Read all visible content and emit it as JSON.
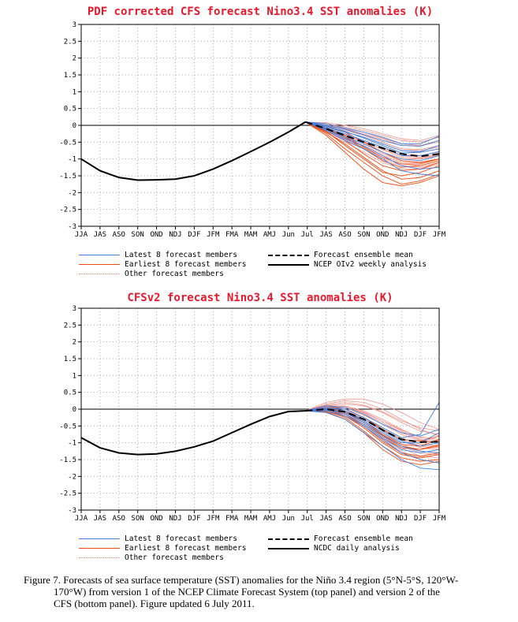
{
  "chart_data": [
    {
      "type": "line",
      "title": "PDF corrected CFS forecast Nino3.4 SST anomalies (K)",
      "ylim": [
        -3,
        3
      ],
      "yticks": [
        "3",
        "2.5",
        "2",
        "1.5",
        "1",
        "0.5",
        "0",
        "-0.5",
        "-1",
        "-1.5",
        "-2",
        "-2.5",
        "-3"
      ],
      "categories": [
        "JJA",
        "JAS",
        "ASO",
        "SON",
        "OND",
        "NDJ",
        "DJF",
        "JFM",
        "FMA",
        "MAM",
        "AMJ",
        "Jun",
        "Jul",
        "JAS",
        "ASO",
        "SON",
        "OND",
        "NDJ",
        "DJF",
        "JFM"
      ],
      "grid": true,
      "legend_position": "bottom",
      "series": [
        {
          "name": "NCEP OIv2 weekly analysis",
          "color": "#000000",
          "x": [
            0,
            1,
            2,
            3,
            4,
            5,
            6,
            7,
            8,
            9,
            10,
            11,
            11.9
          ],
          "values": [
            -1.0,
            -1.35,
            -1.55,
            -1.63,
            -1.62,
            -1.6,
            -1.5,
            -1.3,
            -1.05,
            -0.78,
            -0.5,
            -0.2,
            0.1
          ]
        },
        {
          "name": "Forecast ensemble mean",
          "color": "#000000",
          "dashed": true,
          "x": [
            11.9,
            13,
            14,
            15,
            16,
            17,
            18,
            19
          ],
          "values": [
            0.1,
            -0.1,
            -0.3,
            -0.5,
            -0.68,
            -0.85,
            -0.92,
            -0.85
          ]
        },
        {
          "name": "Latest 8 forecast members",
          "color": "#3f7fe0"
        },
        {
          "name": "Earliest 8 forecast members",
          "color": "#f04a10"
        },
        {
          "name": "Other forecast members",
          "color": "#f08a80"
        }
      ],
      "forecast_start_x": 11.9,
      "forecast_start_y": 0.1,
      "members": {
        "latest": [
          [
            0.1,
            0.0,
            -0.12,
            -0.28,
            -0.45,
            -0.6,
            -0.62,
            -0.45
          ],
          [
            0.1,
            0.05,
            -0.08,
            -0.2,
            -0.35,
            -0.55,
            -0.55,
            -0.32
          ],
          [
            0.1,
            -0.05,
            -0.2,
            -0.35,
            -0.55,
            -0.75,
            -0.78,
            -0.6
          ],
          [
            0.1,
            -0.02,
            -0.18,
            -0.38,
            -0.6,
            -0.82,
            -0.8,
            -0.7
          ],
          [
            0.1,
            -0.08,
            -0.25,
            -0.45,
            -0.65,
            -0.9,
            -0.9,
            -0.78
          ],
          [
            0.1,
            -0.1,
            -0.35,
            -0.55,
            -0.8,
            -1.0,
            -1.05,
            -0.9
          ],
          [
            0.1,
            -0.12,
            -0.4,
            -0.62,
            -0.9,
            -1.2,
            -1.3,
            -1.25
          ],
          [
            0.1,
            -0.15,
            -0.45,
            -0.7,
            -1.0,
            -1.35,
            -1.45,
            -1.5
          ]
        ],
        "earliest": [
          [
            0.1,
            -0.05,
            -0.2,
            -0.5,
            -0.8,
            -1.05,
            -1.1,
            -1.0
          ],
          [
            0.1,
            -0.12,
            -0.35,
            -0.7,
            -1.05,
            -1.25,
            -1.2,
            -1.05
          ],
          [
            0.1,
            -0.2,
            -0.55,
            -0.95,
            -1.35,
            -1.6,
            -1.55,
            -1.35
          ],
          [
            0.1,
            -0.25,
            -0.7,
            -1.1,
            -1.5,
            -1.75,
            -1.65,
            -1.45
          ],
          [
            0.1,
            -0.3,
            -0.8,
            -1.3,
            -1.7,
            -1.8,
            -1.7,
            -1.5
          ],
          [
            0.1,
            -0.18,
            -0.6,
            -1.0,
            -1.4,
            -1.5,
            -1.4,
            -1.2
          ],
          [
            0.1,
            -0.1,
            -0.3,
            -0.65,
            -0.95,
            -1.15,
            -1.15,
            -1.0
          ],
          [
            0.1,
            -0.15,
            -0.45,
            -0.85,
            -1.2,
            -1.35,
            -1.3,
            -1.1
          ]
        ],
        "other": [
          [
            0.1,
            0.05,
            -0.05,
            -0.15,
            -0.3,
            -0.45,
            -0.5,
            -0.35
          ],
          [
            0.1,
            0.0,
            -0.1,
            -0.25,
            -0.4,
            -0.6,
            -0.6,
            -0.5
          ],
          [
            0.1,
            0.08,
            0.0,
            -0.1,
            -0.25,
            -0.4,
            -0.45,
            -0.3
          ],
          [
            0.1,
            -0.05,
            -0.2,
            -0.35,
            -0.55,
            -0.75,
            -0.8,
            -0.7
          ],
          [
            0.1,
            -0.1,
            -0.3,
            -0.5,
            -0.7,
            -0.9,
            -0.95,
            -0.85
          ],
          [
            0.1,
            -0.08,
            -0.25,
            -0.45,
            -0.65,
            -0.85,
            -0.9,
            -0.8
          ],
          [
            0.1,
            -0.15,
            -0.38,
            -0.6,
            -0.85,
            -1.05,
            -1.1,
            -1.0
          ],
          [
            0.1,
            -0.2,
            -0.45,
            -0.7,
            -1.0,
            -1.2,
            -1.25,
            -1.1
          ],
          [
            0.1,
            -0.12,
            -0.32,
            -0.55,
            -0.8,
            -1.0,
            -1.0,
            -0.9
          ],
          [
            0.1,
            -0.05,
            -0.15,
            -0.3,
            -0.5,
            -0.7,
            -0.75,
            -0.65
          ],
          [
            0.1,
            -0.18,
            -0.42,
            -0.68,
            -0.95,
            -1.15,
            -1.2,
            -1.05
          ],
          [
            0.1,
            -0.02,
            -0.12,
            -0.28,
            -0.5,
            -0.7,
            -0.72,
            -0.6
          ],
          [
            0.1,
            -0.22,
            -0.5,
            -0.8,
            -1.1,
            -1.3,
            -1.3,
            -1.15
          ],
          [
            0.1,
            0.02,
            -0.1,
            -0.2,
            -0.38,
            -0.55,
            -0.6,
            -0.45
          ],
          [
            0.1,
            -0.1,
            -0.28,
            -0.48,
            -0.72,
            -0.95,
            -0.98,
            -0.88
          ],
          [
            0.1,
            -0.14,
            -0.36,
            -0.62,
            -0.9,
            -1.1,
            -1.12,
            -1.0
          ]
        ]
      },
      "legend": {
        "latest": "Latest 8 forecast members",
        "earliest": "Earliest 8 forecast members",
        "other": "Other forecast members",
        "mean": "Forecast ensemble mean",
        "analysis": "NCEP OIv2 weekly analysis"
      }
    },
    {
      "type": "line",
      "title": "CFSv2 forecast Nino3.4 SST anomalies (K)",
      "ylim": [
        -3,
        3
      ],
      "yticks": [
        "3",
        "2.5",
        "2",
        "1.5",
        "1",
        "0.5",
        "0",
        "-0.5",
        "-1",
        "-1.5",
        "-2",
        "-2.5",
        "-3"
      ],
      "categories": [
        "JJA",
        "JAS",
        "ASO",
        "SON",
        "OND",
        "NDJ",
        "DJF",
        "JFM",
        "FMA",
        "MAM",
        "AMJ",
        "Jun",
        "Jul",
        "JAS",
        "ASO",
        "SON",
        "OND",
        "NDJ",
        "DJF",
        "JFM"
      ],
      "grid": true,
      "legend_position": "bottom",
      "series": [
        {
          "name": "NCDC daily analysis",
          "color": "#000000",
          "x": [
            0,
            1,
            2,
            3,
            4,
            5,
            6,
            7,
            8,
            9,
            10,
            11,
            11.9
          ],
          "values": [
            -0.85,
            -1.15,
            -1.3,
            -1.35,
            -1.33,
            -1.25,
            -1.12,
            -0.95,
            -0.7,
            -0.45,
            -0.22,
            -0.07,
            -0.05
          ]
        },
        {
          "name": "Forecast ensemble mean",
          "color": "#000000",
          "dashed": true,
          "x": [
            11.9,
            13,
            14,
            15,
            16,
            17,
            18,
            19
          ],
          "values": [
            -0.05,
            0.0,
            -0.08,
            -0.3,
            -0.62,
            -0.9,
            -0.98,
            -0.97
          ]
        },
        {
          "name": "Latest 8 forecast members",
          "color": "#3f7fe0"
        },
        {
          "name": "Earliest 8 forecast members",
          "color": "#f04a10"
        },
        {
          "name": "Other forecast members",
          "color": "#f08a80"
        }
      ],
      "forecast_start_x": 11.9,
      "forecast_start_y": -0.05,
      "members": {
        "latest": [
          [
            -0.05,
            0.05,
            0.0,
            -0.25,
            -0.55,
            -0.85,
            -0.75,
            0.2
          ],
          [
            -0.05,
            0.0,
            -0.1,
            -0.35,
            -0.7,
            -1.0,
            -1.0,
            -0.7
          ],
          [
            -0.05,
            0.1,
            0.05,
            -0.15,
            -0.45,
            -0.7,
            -0.8,
            -0.6
          ],
          [
            -0.05,
            -0.05,
            -0.2,
            -0.5,
            -0.9,
            -1.3,
            -1.5,
            -1.6
          ],
          [
            -0.05,
            -0.02,
            -0.15,
            -0.45,
            -0.85,
            -1.2,
            -1.3,
            -1.2
          ],
          [
            -0.05,
            0.05,
            -0.05,
            -0.3,
            -0.65,
            -0.95,
            -1.1,
            -1.0
          ],
          [
            -0.05,
            -0.1,
            -0.3,
            -0.7,
            -1.1,
            -1.5,
            -1.75,
            -1.8
          ],
          [
            -0.05,
            0.02,
            -0.1,
            -0.4,
            -0.78,
            -1.1,
            -1.25,
            -1.3
          ]
        ],
        "earliest": [
          [
            -0.05,
            0.05,
            -0.05,
            -0.35,
            -0.75,
            -1.05,
            -1.1,
            -0.9
          ],
          [
            -0.05,
            0.0,
            -0.15,
            -0.5,
            -0.95,
            -1.3,
            -1.4,
            -1.3
          ],
          [
            -0.05,
            -0.05,
            -0.25,
            -0.65,
            -1.1,
            -1.45,
            -1.55,
            -1.5
          ],
          [
            -0.05,
            0.1,
            0.0,
            -0.25,
            -0.6,
            -0.9,
            -0.95,
            -0.8
          ],
          [
            -0.05,
            -0.08,
            -0.3,
            -0.7,
            -1.2,
            -1.55,
            -1.65,
            -1.55
          ],
          [
            -0.05,
            0.0,
            -0.2,
            -0.55,
            -1.0,
            -1.35,
            -1.45,
            -1.35
          ],
          [
            -0.05,
            -0.02,
            -0.15,
            -0.45,
            -0.85,
            -1.15,
            -1.2,
            -1.05
          ],
          [
            -0.05,
            0.05,
            -0.1,
            -0.4,
            -0.8,
            -1.1,
            -1.2,
            -1.1
          ]
        ],
        "other": [
          [
            -0.05,
            0.2,
            0.3,
            0.3,
            0.15,
            -0.1,
            -0.4,
            -0.6
          ],
          [
            -0.05,
            0.15,
            0.25,
            0.2,
            0.0,
            -0.3,
            -0.6,
            -0.8
          ],
          [
            -0.05,
            0.1,
            0.15,
            0.1,
            -0.1,
            -0.4,
            -0.65,
            -0.75
          ],
          [
            -0.05,
            0.05,
            0.05,
            -0.1,
            -0.35,
            -0.65,
            -0.9,
            -1.0
          ],
          [
            -0.05,
            0.0,
            -0.05,
            -0.25,
            -0.55,
            -0.85,
            -1.05,
            -1.1
          ],
          [
            -0.05,
            -0.05,
            -0.15,
            -0.4,
            -0.75,
            -1.1,
            -1.3,
            -1.35
          ],
          [
            -0.05,
            0.08,
            0.1,
            -0.05,
            -0.3,
            -0.6,
            -0.85,
            -0.95
          ],
          [
            -0.05,
            0.02,
            -0.08,
            -0.3,
            -0.62,
            -0.95,
            -1.15,
            -1.2
          ],
          [
            -0.05,
            -0.08,
            -0.22,
            -0.5,
            -0.88,
            -1.25,
            -1.5,
            -1.6
          ],
          [
            -0.05,
            0.12,
            0.2,
            0.12,
            -0.08,
            -0.35,
            -0.55,
            -0.65
          ],
          [
            -0.05,
            0.04,
            0.0,
            -0.18,
            -0.45,
            -0.75,
            -0.95,
            -1.0
          ],
          [
            -0.05,
            -0.02,
            -0.12,
            -0.35,
            -0.7,
            -1.05,
            -1.25,
            -1.3
          ],
          [
            -0.05,
            0.06,
            0.05,
            -0.12,
            -0.4,
            -0.7,
            -0.92,
            -1.0
          ],
          [
            -0.05,
            -0.06,
            -0.2,
            -0.45,
            -0.8,
            -1.15,
            -1.4,
            -1.45
          ],
          [
            -0.05,
            0.1,
            0.08,
            -0.08,
            -0.35,
            -0.62,
            -0.82,
            -0.9
          ],
          [
            -0.05,
            0.0,
            -0.1,
            -0.3,
            -0.6,
            -0.9,
            -1.1,
            -1.15
          ]
        ]
      },
      "legend": {
        "latest": "Latest 8 forecast members",
        "earliest": "Earliest 8 forecast members",
        "other": "Other forecast members",
        "mean": "Forecast ensemble mean",
        "analysis": "NCDC daily analysis"
      }
    }
  ],
  "caption": {
    "line1": "Figure 7. Forecasts of sea surface temperature (SST) anomalies for the Niño 3.4 region (5°N-5°S, 120°W-",
    "line2": "170°W) from version 1 of the NCEP Climate Forecast System (top panel) and version 2 of the",
    "line3": "CFS (bottom panel).  Figure updated 6 July 2011."
  }
}
